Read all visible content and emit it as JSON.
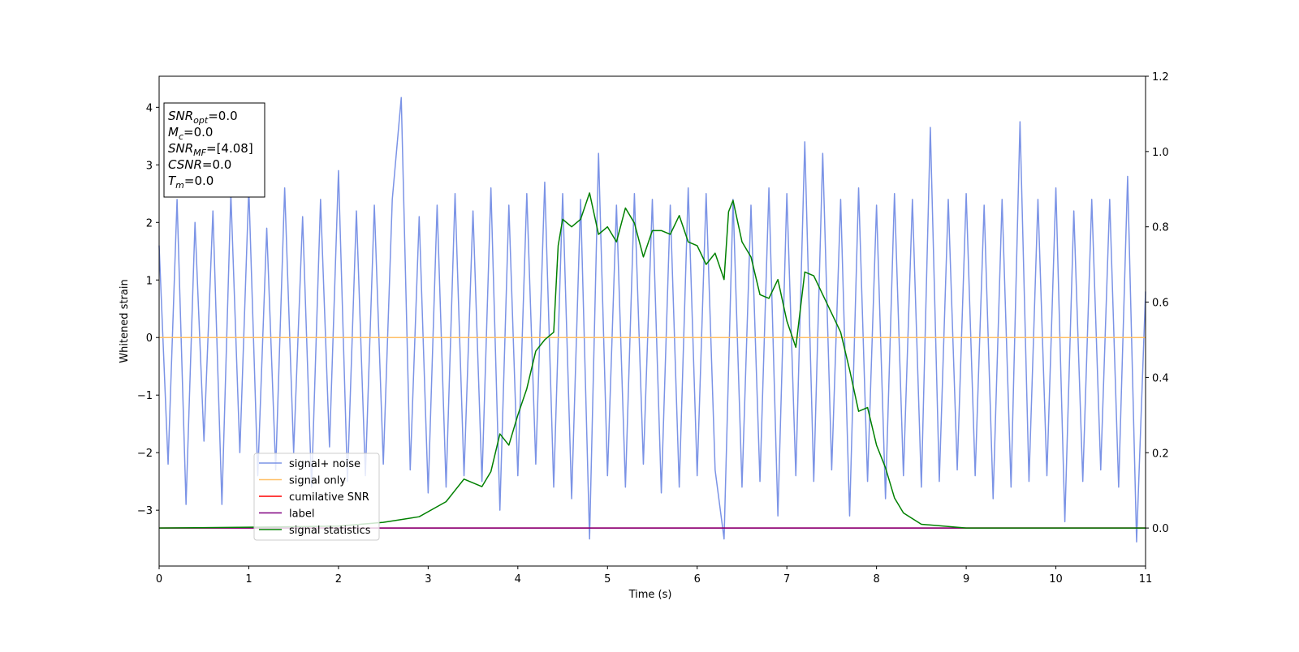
{
  "chart_data": {
    "type": "line",
    "xlabel": "Time (s)",
    "ylabel": "Whitened strain",
    "xlim": [
      0,
      11
    ],
    "ylim": [
      -3.97,
      4.54
    ],
    "y2lim": [
      -0.101,
      1.2
    ],
    "xticks": [
      0,
      1,
      2,
      3,
      4,
      5,
      6,
      7,
      8,
      9,
      10,
      11
    ],
    "yticks": [
      {
        "value": -3,
        "label": "−3"
      },
      {
        "value": -2,
        "label": "−2"
      },
      {
        "value": -1,
        "label": "−1"
      },
      0,
      1,
      2,
      3,
      4
    ],
    "y2ticks": [
      {
        "value": 0,
        "label": "0.0"
      },
      0.2,
      0.4,
      0.6,
      0.8,
      {
        "value": 1,
        "label": "1.0"
      },
      1.2
    ],
    "legend": "lower left",
    "annotation": [
      {
        "main": "SNR",
        "sub": "opt",
        "rest": "=0.0"
      },
      {
        "main": "M",
        "sub": "c",
        "rest": "=0.0"
      },
      {
        "main": "SNR",
        "sub": "MF",
        "rest": "=[4.08]"
      },
      {
        "main": "CSNR",
        "sub": null,
        "rest": "=0.0"
      },
      {
        "main": "T",
        "sub": "m",
        "rest": "=0.0"
      }
    ],
    "series": [
      {
        "name": "signal+ noise",
        "color": "#7b93e6",
        "x": [
          0,
          0.1,
          0.2,
          0.3,
          0.4,
          0.5,
          0.6,
          0.7,
          0.8,
          0.9,
          1,
          1.1,
          1.2,
          1.3,
          1.4,
          1.5,
          1.6,
          1.7,
          1.8,
          1.9,
          2,
          2.1,
          2.2,
          2.3,
          2.4,
          2.5,
          2.6,
          2.7,
          2.8,
          2.9,
          3,
          3.1,
          3.2,
          3.3,
          3.4,
          3.5,
          3.6,
          3.7,
          3.8,
          3.9,
          4,
          4.1,
          4.2,
          4.3,
          4.4,
          4.5,
          4.6,
          4.7,
          4.8,
          4.9,
          5,
          5.1,
          5.2,
          5.3,
          5.4,
          5.5,
          5.6,
          5.7,
          5.8,
          5.9,
          6,
          6.1,
          6.2,
          6.3,
          6.4,
          6.5,
          6.6,
          6.7,
          6.8,
          6.9,
          7,
          7.1,
          7.2,
          7.3,
          7.4,
          7.5,
          7.6,
          7.7,
          7.8,
          7.9,
          8,
          8.1,
          8.2,
          8.3,
          8.4,
          8.5,
          8.6,
          8.7,
          8.8,
          8.9,
          9,
          9.1,
          9.2,
          9.3,
          9.4,
          9.5,
          9.6,
          9.7,
          9.8,
          9.9,
          10,
          10.1,
          10.2,
          10.3,
          10.4,
          10.5,
          10.6,
          10.7,
          10.8,
          10.9,
          11
        ],
        "values": [
          1.6,
          -2.2,
          2.4,
          -2.9,
          2.0,
          -1.8,
          2.2,
          -2.9,
          2.5,
          -2.0,
          2.6,
          -2.4,
          1.9,
          -2.3,
          2.6,
          -2.0,
          2.1,
          -2.6,
          2.4,
          -1.9,
          2.9,
          -2.5,
          2.2,
          -2.4,
          2.3,
          -2.2,
          2.4,
          4.17,
          -2.3,
          2.1,
          -2.7,
          2.3,
          -2.6,
          2.5,
          -2.4,
          2.2,
          -2.5,
          2.6,
          -3.0,
          2.3,
          -2.4,
          2.5,
          -2.2,
          2.7,
          -2.6,
          2.5,
          -2.8,
          2.4,
          -3.5,
          3.2,
          -2.4,
          2.3,
          -2.6,
          2.5,
          -2.2,
          2.4,
          -2.7,
          2.3,
          -2.6,
          2.6,
          -2.4,
          2.5,
          -2.3,
          -3.5,
          2.4,
          -2.6,
          2.3,
          -2.5,
          2.6,
          -3.1,
          2.5,
          -2.4,
          3.4,
          -2.5,
          3.2,
          -2.3,
          2.4,
          -3.1,
          2.6,
          -2.5,
          2.3,
          -2.8,
          2.5,
          -2.4,
          2.4,
          -2.6,
          3.65,
          -2.5,
          2.4,
          -2.3,
          2.5,
          -2.4,
          2.3,
          -2.8,
          2.4,
          -2.6,
          3.75,
          -2.5,
          2.4,
          -2.4,
          2.6,
          -3.2,
          2.2,
          -2.5,
          2.4,
          -2.3,
          2.4,
          -2.6,
          2.8,
          -3.55,
          0.8
        ]
      },
      {
        "name": "signal only",
        "color": "#ffbf66",
        "x": [
          0,
          11
        ],
        "values": [
          0,
          0
        ]
      },
      {
        "name": "cumilative SNR",
        "color": "#ff0000",
        "axis": "y2",
        "x": [
          0,
          11
        ],
        "values": [
          0,
          0
        ]
      },
      {
        "name": "label",
        "color": "#800080",
        "axis": "y2",
        "x": [
          0,
          11
        ],
        "values": [
          0,
          0
        ]
      },
      {
        "name": "signal statistics",
        "color": "#008000",
        "axis": "y2",
        "x": [
          0,
          1,
          2,
          2.5,
          2.9,
          3.2,
          3.3,
          3.4,
          3.5,
          3.6,
          3.7,
          3.8,
          3.9,
          4,
          4.1,
          4.2,
          4.3,
          4.4,
          4.45,
          4.5,
          4.6,
          4.7,
          4.8,
          4.9,
          5,
          5.1,
          5.2,
          5.3,
          5.4,
          5.5,
          5.6,
          5.7,
          5.8,
          5.9,
          6,
          6.1,
          6.2,
          6.3,
          6.35,
          6.4,
          6.5,
          6.6,
          6.7,
          6.8,
          6.9,
          7,
          7.1,
          7.2,
          7.3,
          7.4,
          7.5,
          7.6,
          7.7,
          7.8,
          7.9,
          8,
          8.1,
          8.2,
          8.3,
          8.5,
          9,
          10,
          11
        ],
        "values": [
          0,
          0.002,
          0.005,
          0.015,
          0.03,
          0.07,
          0.1,
          0.13,
          0.12,
          0.11,
          0.15,
          0.25,
          0.22,
          0.3,
          0.37,
          0.47,
          0.5,
          0.52,
          0.75,
          0.82,
          0.8,
          0.82,
          0.89,
          0.78,
          0.8,
          0.76,
          0.85,
          0.81,
          0.72,
          0.79,
          0.79,
          0.78,
          0.83,
          0.76,
          0.75,
          0.7,
          0.73,
          0.66,
          0.84,
          0.87,
          0.76,
          0.72,
          0.62,
          0.61,
          0.66,
          0.55,
          0.48,
          0.68,
          0.67,
          0.62,
          0.57,
          0.52,
          0.42,
          0.31,
          0.32,
          0.22,
          0.16,
          0.08,
          0.04,
          0.01,
          0,
          0,
          0
        ]
      }
    ]
  }
}
